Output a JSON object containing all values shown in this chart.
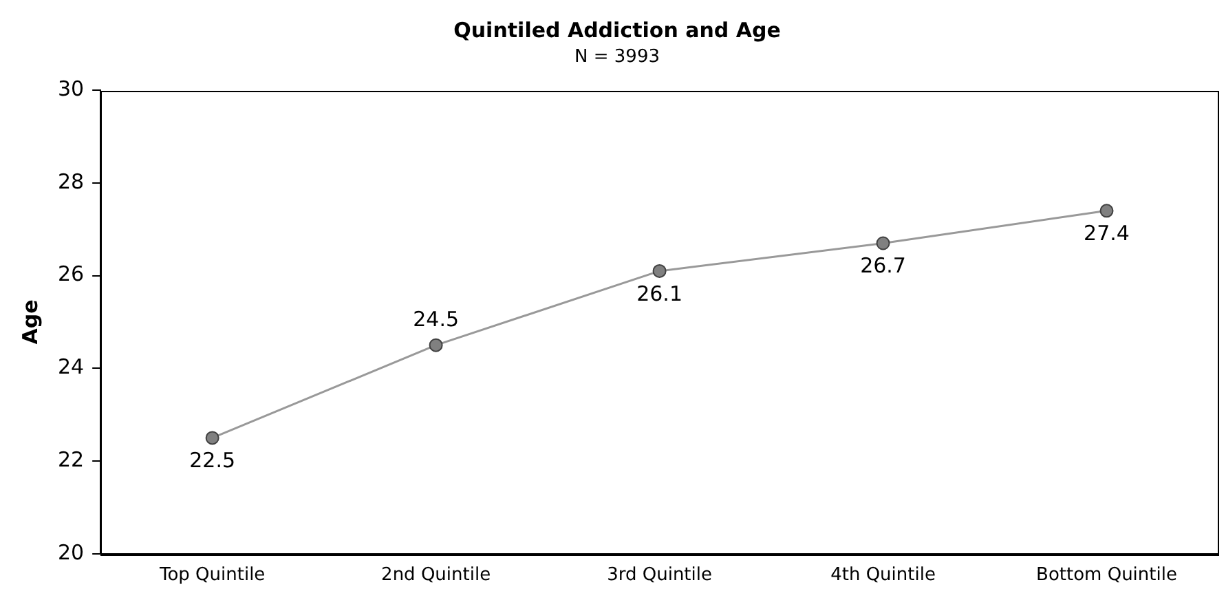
{
  "chart_data": {
    "type": "line",
    "title": "Quintiled Addiction and Age",
    "subtitle": "N = 3993",
    "ylabel": "Age",
    "categories": [
      "Top Quintile",
      "2nd Quintile",
      "3rd Quintile",
      "4th Quintile",
      "Bottom Quintile"
    ],
    "series": [
      {
        "color": "#999999",
        "values": [
          22.5,
          24.5,
          26.1,
          26.7,
          27.4
        ]
      }
    ],
    "ylim": [
      20,
      30
    ],
    "yticks": [
      20,
      22,
      24,
      26,
      28,
      30
    ],
    "marker": "circle",
    "line_style": "solid",
    "data_labels": true,
    "grid": false,
    "legend": false
  }
}
